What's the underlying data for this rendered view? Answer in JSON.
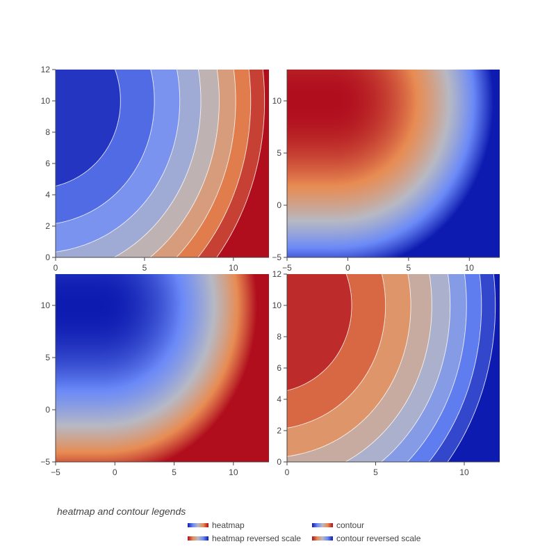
{
  "colors": {
    "scale": [
      "#0d1bb0",
      "#6b8af8",
      "#b7b9c4",
      "#e88c53",
      "#b00d1d"
    ],
    "contour_line": "#ffffff"
  },
  "chart_data": [
    {
      "type": "heatmap",
      "panel": "top-left",
      "style": "contour",
      "reversed": false,
      "x_range": [
        0,
        12
      ],
      "y_range": [
        0,
        12
      ],
      "x_ticks": [
        0,
        5,
        10
      ],
      "y_ticks": [
        0,
        2,
        4,
        6,
        8,
        10,
        12
      ]
    },
    {
      "type": "heatmap",
      "panel": "top-right",
      "style": "heatmap",
      "reversed": true,
      "x_range": [
        -5,
        12.5
      ],
      "y_range": [
        -5,
        13
      ],
      "x_ticks": [
        -5,
        0,
        5,
        10
      ],
      "y_ticks": [
        -5,
        0,
        5,
        10
      ]
    },
    {
      "type": "heatmap",
      "panel": "bottom-left",
      "style": "heatmap",
      "reversed": false,
      "x_range": [
        -5,
        13
      ],
      "y_range": [
        -5,
        13
      ],
      "x_ticks": [
        -5,
        0,
        5,
        10
      ],
      "y_ticks": [
        -5,
        0,
        5,
        10
      ]
    },
    {
      "type": "heatmap",
      "panel": "bottom-right",
      "style": "contour",
      "reversed": true,
      "x_range": [
        0,
        12
      ],
      "y_range": [
        0,
        12
      ],
      "x_ticks": [
        0,
        5,
        10
      ],
      "y_ticks": [
        0,
        2,
        4,
        6,
        8,
        10,
        12
      ]
    }
  ],
  "legend": {
    "title": "heatmap and contour legends",
    "items": [
      {
        "name": "heatmap",
        "reversed": false,
        "column": 0,
        "row": 0
      },
      {
        "name": "contour",
        "reversed": false,
        "column": 1,
        "row": 0
      },
      {
        "name": "heatmap reversed scale",
        "reversed": true,
        "column": 0,
        "row": 1
      },
      {
        "name": "contour reversed scale",
        "reversed": true,
        "column": 1,
        "row": 1
      }
    ]
  }
}
